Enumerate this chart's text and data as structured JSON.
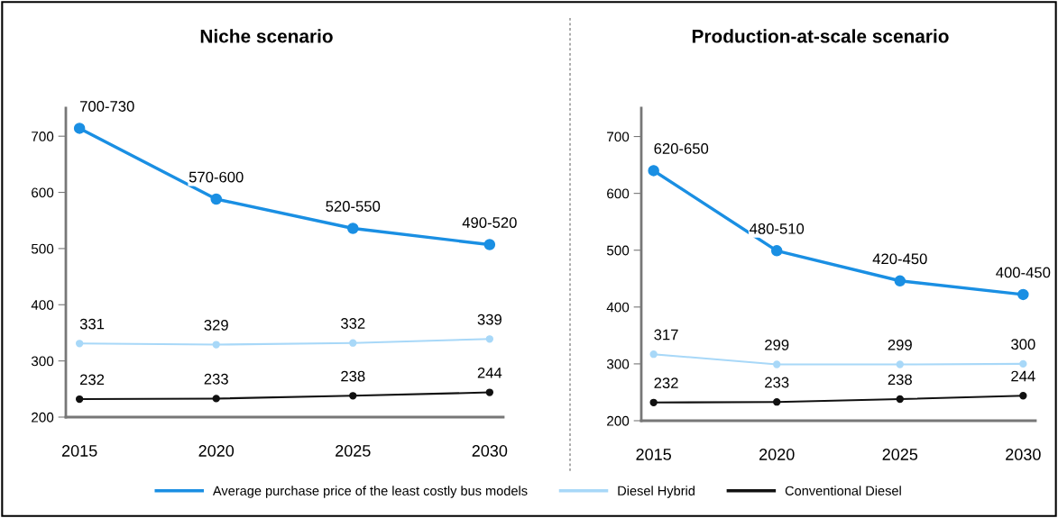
{
  "chart_data": [
    {
      "type": "line",
      "title": "Niche scenario",
      "x": [
        2015,
        2020,
        2025,
        2030
      ],
      "xlim": [
        2014.5,
        2030.5
      ],
      "xticks": [
        2015,
        2020,
        2025,
        2030
      ],
      "ylim": [
        200,
        750
      ],
      "yticks": [
        200,
        300,
        400,
        500,
        600,
        700
      ],
      "grid": false,
      "legend": "bottom",
      "marker": "circle",
      "line_style": "solid",
      "series": [
        {
          "name": "Average purchase price of the least costly bus models",
          "color": "#1a8fe3",
          "values": [
            714,
            588,
            536,
            507
          ],
          "value_labels": [
            "700-730",
            "570-600",
            "520-550",
            "490-520"
          ]
        },
        {
          "name": "Diesel Hybrid",
          "color": "#a8d8f8",
          "values": [
            331,
            329,
            332,
            339
          ],
          "value_labels": [
            "331",
            "329",
            "332",
            "339"
          ]
        },
        {
          "name": "Conventional Diesel",
          "color": "#111111",
          "values": [
            232,
            233,
            238,
            244
          ],
          "value_labels": [
            "232",
            "233",
            "238",
            "244"
          ]
        }
      ]
    },
    {
      "type": "line",
      "title": "Production-at-scale scenario",
      "x": [
        2015,
        2020,
        2025,
        2030
      ],
      "xlim": [
        2014.5,
        2030.5
      ],
      "xticks": [
        2015,
        2020,
        2025,
        2030
      ],
      "ylim": [
        200,
        750
      ],
      "yticks": [
        200,
        300,
        400,
        500,
        600,
        700
      ],
      "grid": false,
      "marker": "circle",
      "line_style": "solid",
      "series": [
        {
          "color": "#1a8fe3",
          "values": [
            640,
            499,
            446,
            422
          ],
          "value_labels": [
            "620-650",
            "480-510",
            "420-450",
            "400-450"
          ]
        },
        {
          "color": "#a8d8f8",
          "values": [
            317,
            299,
            299,
            300
          ],
          "value_labels": [
            "317",
            "299",
            "299",
            "300"
          ]
        },
        {
          "color": "#111111",
          "values": [
            232,
            233,
            238,
            244
          ],
          "value_labels": [
            "232",
            "233",
            "238",
            "244"
          ]
        }
      ]
    }
  ]
}
